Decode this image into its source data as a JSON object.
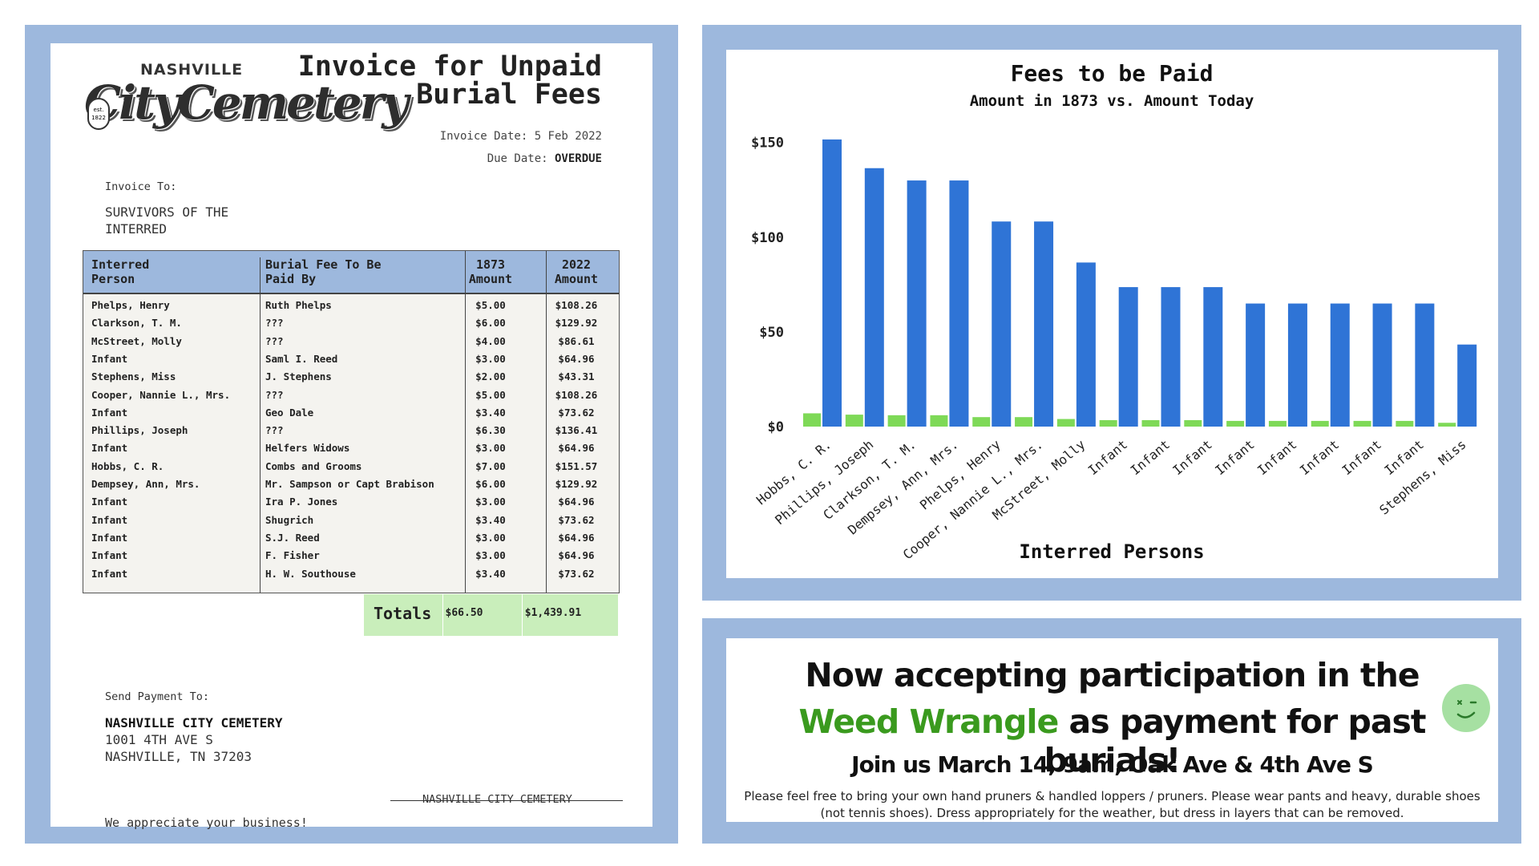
{
  "invoice": {
    "logo_top": "NASHVILLE",
    "logo_main": "CityCemetery",
    "logo_badge": "est. 1822",
    "title_line1": "Invoice for Unpaid",
    "title_line2": "Burial Fees",
    "invoice_date_label": "Invoice Date:",
    "invoice_date": "5 Feb 2022",
    "due_date_label": "Due Date:",
    "due_date": "OVERDUE",
    "invoice_to_label": "Invoice To:",
    "invoice_to_line1": "SURVIVORS OF THE",
    "invoice_to_line2": "INTERRED",
    "headers": {
      "col1_a": "Interred",
      "col1_b": "Person",
      "col2_a": "Burial Fee To Be",
      "col2_b": "Paid By",
      "col3_a": "1873",
      "col3_b": "Amount",
      "col4_a": "2022",
      "col4_b": "Amount"
    },
    "rows": [
      {
        "name": "Phelps, Henry",
        "payer": "Ruth Phelps",
        "a1873": "$5.00",
        "a2022": "$108.26"
      },
      {
        "name": "Clarkson, T. M.",
        "payer": "???",
        "a1873": "$6.00",
        "a2022": "$129.92"
      },
      {
        "name": "McStreet, Molly",
        "payer": "???",
        "a1873": "$4.00",
        "a2022": "$86.61"
      },
      {
        "name": "Infant",
        "payer": "Saml I. Reed",
        "a1873": "$3.00",
        "a2022": "$64.96"
      },
      {
        "name": "Stephens, Miss",
        "payer": "J. Stephens",
        "a1873": "$2.00",
        "a2022": "$43.31"
      },
      {
        "name": "Cooper, Nannie L., Mrs.",
        "payer": "???",
        "a1873": "$5.00",
        "a2022": "$108.26"
      },
      {
        "name": "Infant",
        "payer": "Geo Dale",
        "a1873": "$3.40",
        "a2022": "$73.62"
      },
      {
        "name": "Phillips, Joseph",
        "payer": "???",
        "a1873": "$6.30",
        "a2022": "$136.41"
      },
      {
        "name": "Infant",
        "payer": "Helfers Widows",
        "a1873": "$3.00",
        "a2022": "$64.96"
      },
      {
        "name": "Hobbs, C. R.",
        "payer": "Combs and Grooms",
        "a1873": "$7.00",
        "a2022": "$151.57"
      },
      {
        "name": "Dempsey, Ann, Mrs.",
        "payer": "Mr. Sampson or Capt Brabison",
        "a1873": "$6.00",
        "a2022": "$129.92"
      },
      {
        "name": "Infant",
        "payer": "Ira P. Jones",
        "a1873": "$3.00",
        "a2022": "$64.96"
      },
      {
        "name": "Infant",
        "payer": "Shugrich",
        "a1873": "$3.40",
        "a2022": "$73.62"
      },
      {
        "name": "Infant",
        "payer": "S.J. Reed",
        "a1873": "$3.00",
        "a2022": "$64.96"
      },
      {
        "name": "Infant",
        "payer": "F. Fisher",
        "a1873": "$3.00",
        "a2022": "$64.96"
      },
      {
        "name": "Infant",
        "payer": "H. W. Southouse",
        "a1873": "$3.40",
        "a2022": "$73.62"
      }
    ],
    "totals_label": "Totals",
    "total_1873": "$66.50",
    "total_2022": "$1,439.91",
    "send_payment_label": "Send Payment To:",
    "payee_name": "NASHVILLE CITY CEMETERY",
    "payee_street": "1001 4TH AVE S",
    "payee_city": "NASHVILLE, TN 37203",
    "signature_name": "NASHVILLE CITY CEMETERY",
    "thanks": "We appreciate your business!"
  },
  "chart_data": {
    "type": "bar",
    "title": "Fees to be Paid",
    "subtitle": "Amount in 1873 vs. Amount Today",
    "xlabel": "Interred Persons",
    "ylabel": "",
    "ylim": [
      0,
      160
    ],
    "yticks": [
      0,
      50,
      100,
      150
    ],
    "ytick_labels": [
      "$0",
      "$50",
      "$100",
      "$150"
    ],
    "grid": false,
    "categories": [
      "Hobbs, C. R.",
      "Phillips, Joseph",
      "Clarkson, T. M.",
      "Dempsey, Ann, Mrs.",
      "Phelps, Henry",
      "Cooper, Nannie L., Mrs.",
      "McStreet, Molly",
      "Infant",
      "Infant",
      "Infant",
      "Infant",
      "Infant",
      "Infant",
      "Infant",
      "Infant",
      "Stephens, Miss"
    ],
    "series": [
      {
        "name": "1873",
        "color": "#7ed957",
        "values": [
          7.0,
          6.3,
          6.0,
          6.0,
          5.0,
          5.0,
          4.0,
          3.4,
          3.4,
          3.4,
          3.0,
          3.0,
          3.0,
          3.0,
          3.0,
          2.0
        ]
      },
      {
        "name": "2022",
        "color": "#2f74d6",
        "values": [
          151.57,
          136.41,
          129.92,
          129.92,
          108.26,
          108.26,
          86.61,
          73.62,
          73.62,
          73.62,
          64.96,
          64.96,
          64.96,
          64.96,
          64.96,
          43.31
        ]
      }
    ]
  },
  "promo": {
    "line1": "Now accepting participation in the",
    "highlight": "Weed Wrangle",
    "line2_rest": " as payment for past burials!",
    "line3": "Join us March 14, 9am, Oak Ave & 4th Ave S",
    "details": "Please feel free to bring your own hand pruners & handled loppers / pruners. Please wear pants and heavy, durable shoes (not tennis shoes). Dress appropriately for the weather, but dress in layers that can be removed.",
    "emoji_icon": "winking-face-icon"
  },
  "colors": {
    "panel": "#9db8dd",
    "table_header": "#9db8dd",
    "totals_bg": "#c9eebb",
    "bar_2022": "#2f74d6",
    "bar_1873": "#7ed957",
    "promo_highlight": "#3a9a1e"
  }
}
